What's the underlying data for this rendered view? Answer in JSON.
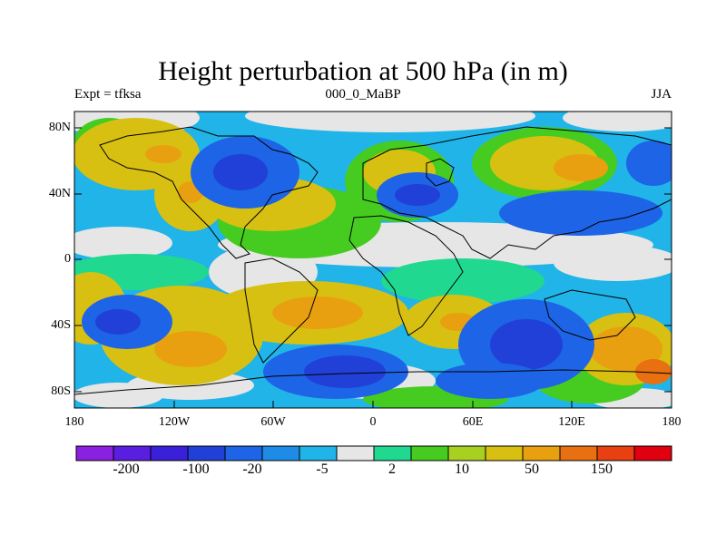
{
  "title": "Height perturbation at 500 hPa (in m)",
  "subtitle_left": "Expt = tfksa",
  "subtitle_center": "000_0_MaBP",
  "subtitle_right": "JJA",
  "lat_labels": [
    "80N",
    "40N",
    "0",
    "40S",
    "80S"
  ],
  "lon_labels": [
    "180",
    "120W",
    "60W",
    "0",
    "60E",
    "120E",
    "180"
  ],
  "colorbar": {
    "colors": [
      "#8a20e0",
      "#5a1ee0",
      "#3a20d8",
      "#2040d8",
      "#1e64e6",
      "#1e8ce6",
      "#20b4e8",
      "#e6e6e6",
      "#20d890",
      "#46cc20",
      "#a8d020",
      "#d8c012",
      "#e8a010",
      "#e87010",
      "#e84010",
      "#e00010"
    ],
    "labels": [
      "-200",
      "-100",
      "-20",
      "-5",
      "2",
      "10",
      "50",
      "150"
    ]
  },
  "palette": {
    "deep_blue": "#2040d8",
    "mid_blue": "#1e64e6",
    "light_blue": "#20b4e8",
    "neutral": "#e6e6e6",
    "green": "#46cc20",
    "yellow": "#d8c012",
    "orange": "#e8a010"
  }
}
